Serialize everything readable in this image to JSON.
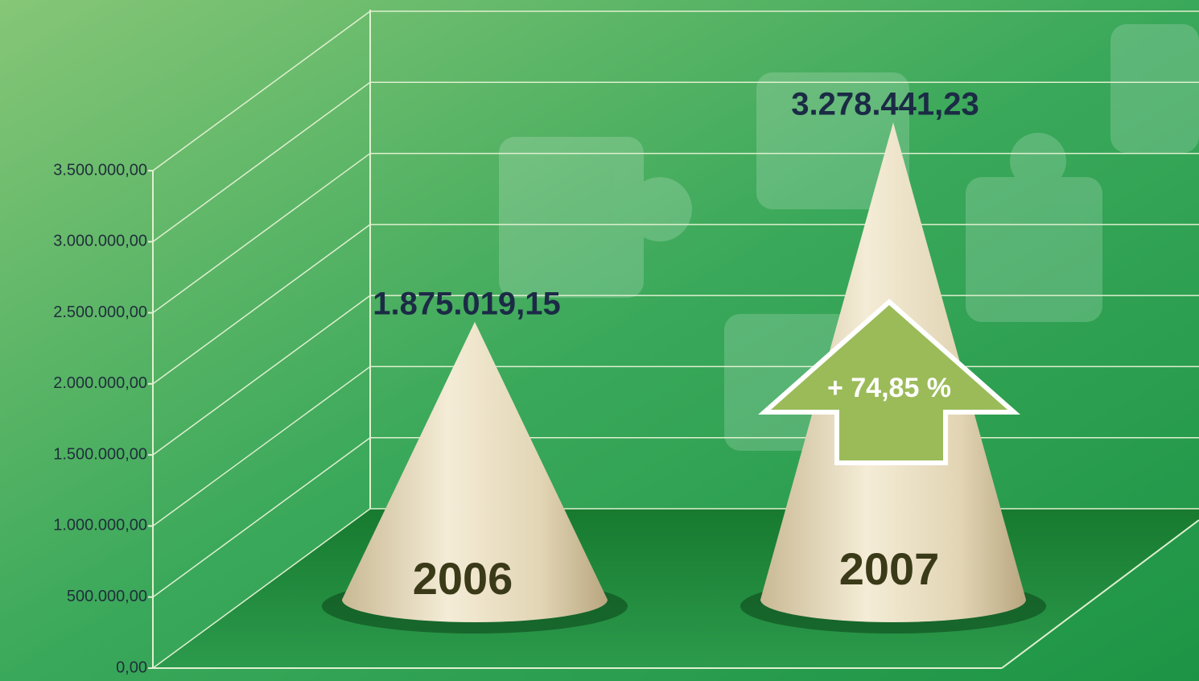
{
  "chart_data": {
    "type": "cone",
    "categories": [
      "2006",
      "2007"
    ],
    "values": [
      1875019.15,
      3278441.23
    ],
    "value_labels": [
      "1.875.019,15",
      "3.278.441,23"
    ],
    "ylim": [
      0,
      3500000
    ],
    "yticks": [
      {
        "value": 0,
        "label": "0,00"
      },
      {
        "value": 500000,
        "label": "500.000,00"
      },
      {
        "value": 1000000,
        "label": "1.000.000,00"
      },
      {
        "value": 1500000,
        "label": "1.500.000,00"
      },
      {
        "value": 2000000,
        "label": "2.000.000,00"
      },
      {
        "value": 2500000,
        "label": "2.500.000,00"
      },
      {
        "value": 3000000,
        "label": "3.000.000,00"
      },
      {
        "value": 3500000,
        "label": "3.500.000,00"
      }
    ],
    "grid": true,
    "color": "#e8dcc0",
    "annotation": "+ 74,85 %"
  }
}
